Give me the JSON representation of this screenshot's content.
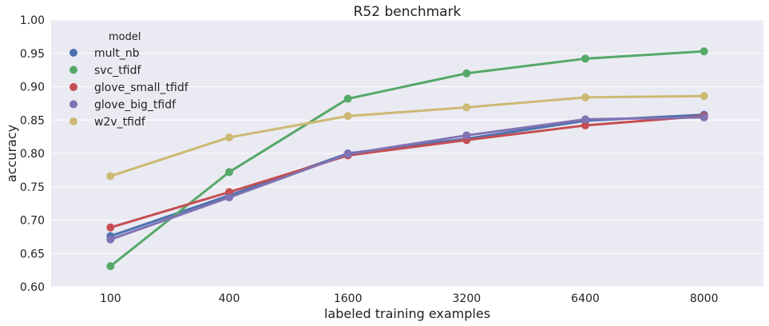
{
  "chart_data": {
    "type": "line",
    "title": "R52 benchmark",
    "xlabel": "labeled training examples",
    "ylabel": "accuracy",
    "categories": [
      "100",
      "400",
      "1600",
      "3200",
      "6400",
      "8000"
    ],
    "ylim": [
      0.6,
      1.0
    ],
    "yticks": [
      "0.60",
      "0.65",
      "0.70",
      "0.75",
      "0.80",
      "0.85",
      "0.90",
      "0.95",
      "1.00"
    ],
    "grid": true,
    "legend": {
      "title": "model",
      "position": "top-left"
    },
    "series": [
      {
        "name": "mult_nb",
        "color": "#4c72b0",
        "values": [
          0.676,
          0.737,
          0.8,
          0.822,
          0.849,
          0.858
        ]
      },
      {
        "name": "svc_tfidf",
        "color": "#55a868",
        "values": [
          0.631,
          0.772,
          0.882,
          0.92,
          0.942,
          0.953
        ]
      },
      {
        "name": "glove_small_tfidf",
        "color": "#c44e52",
        "values": [
          0.689,
          0.742,
          0.797,
          0.82,
          0.842,
          0.856
        ]
      },
      {
        "name": "glove_big_tfidf",
        "color": "#8172b2",
        "values": [
          0.671,
          0.734,
          0.799,
          0.827,
          0.851,
          0.854
        ]
      },
      {
        "name": "w2v_tfidf",
        "color": "#ccb974",
        "values": [
          0.766,
          0.824,
          0.856,
          0.869,
          0.884,
          0.886
        ]
      }
    ]
  }
}
